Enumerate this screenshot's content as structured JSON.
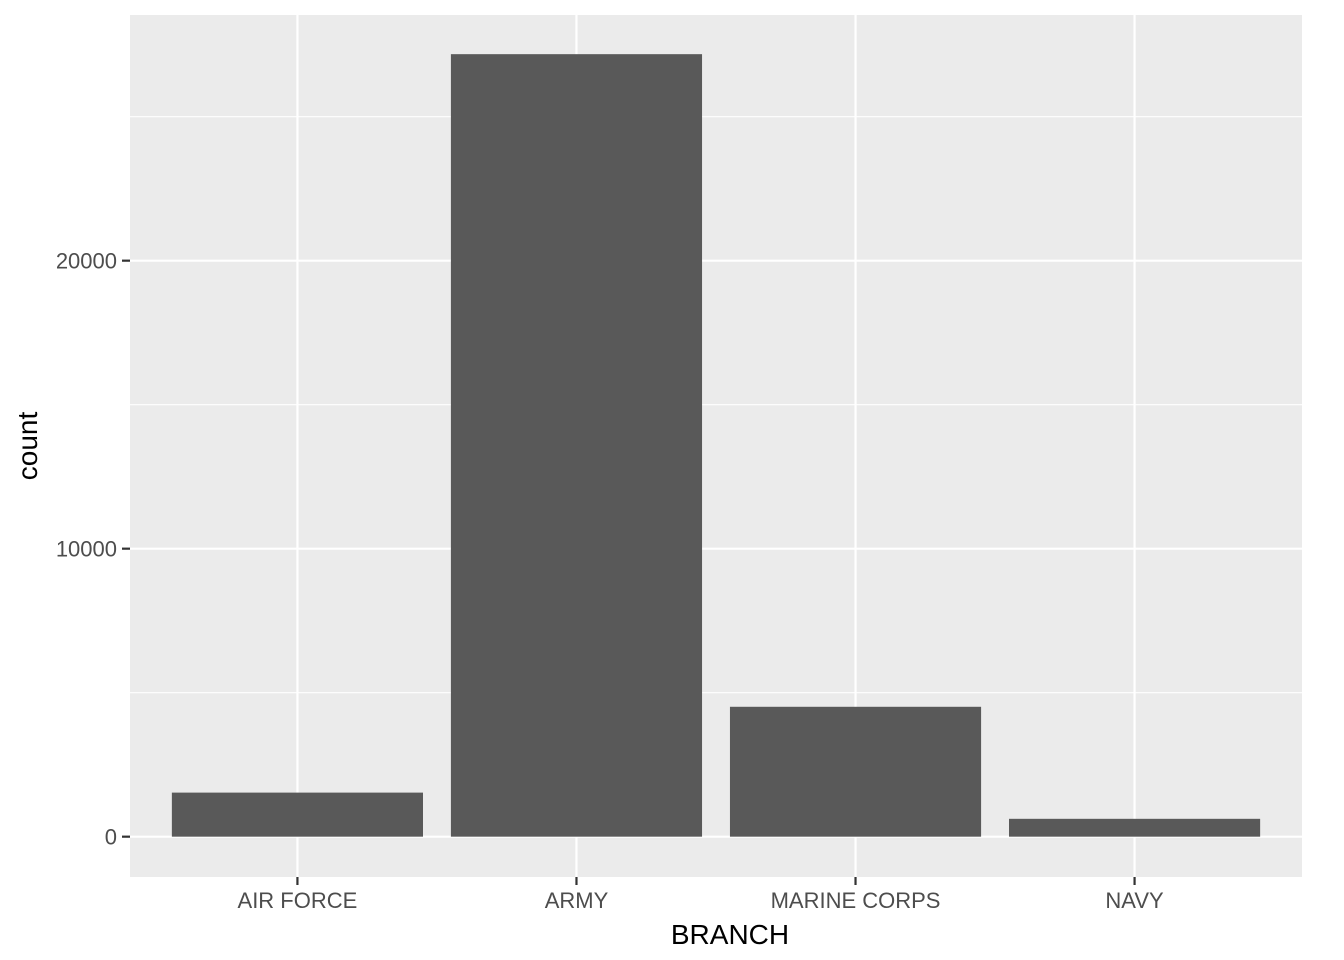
{
  "chart_data": {
    "type": "bar",
    "categories": [
      "AIR FORCE",
      "ARMY",
      "MARINE CORPS",
      "NAVY"
    ],
    "values": [
      1530,
      27170,
      4510,
      620
    ],
    "xlabel": "BRANCH",
    "ylabel": "count",
    "yticks": [
      0,
      10000,
      20000
    ],
    "ylim": [
      -1400,
      28530
    ],
    "grid": true,
    "legend": "none",
    "colors": {
      "bar": "#595959",
      "panel": "#ebebeb",
      "grid": "#ffffff",
      "tick": "#333333"
    }
  }
}
